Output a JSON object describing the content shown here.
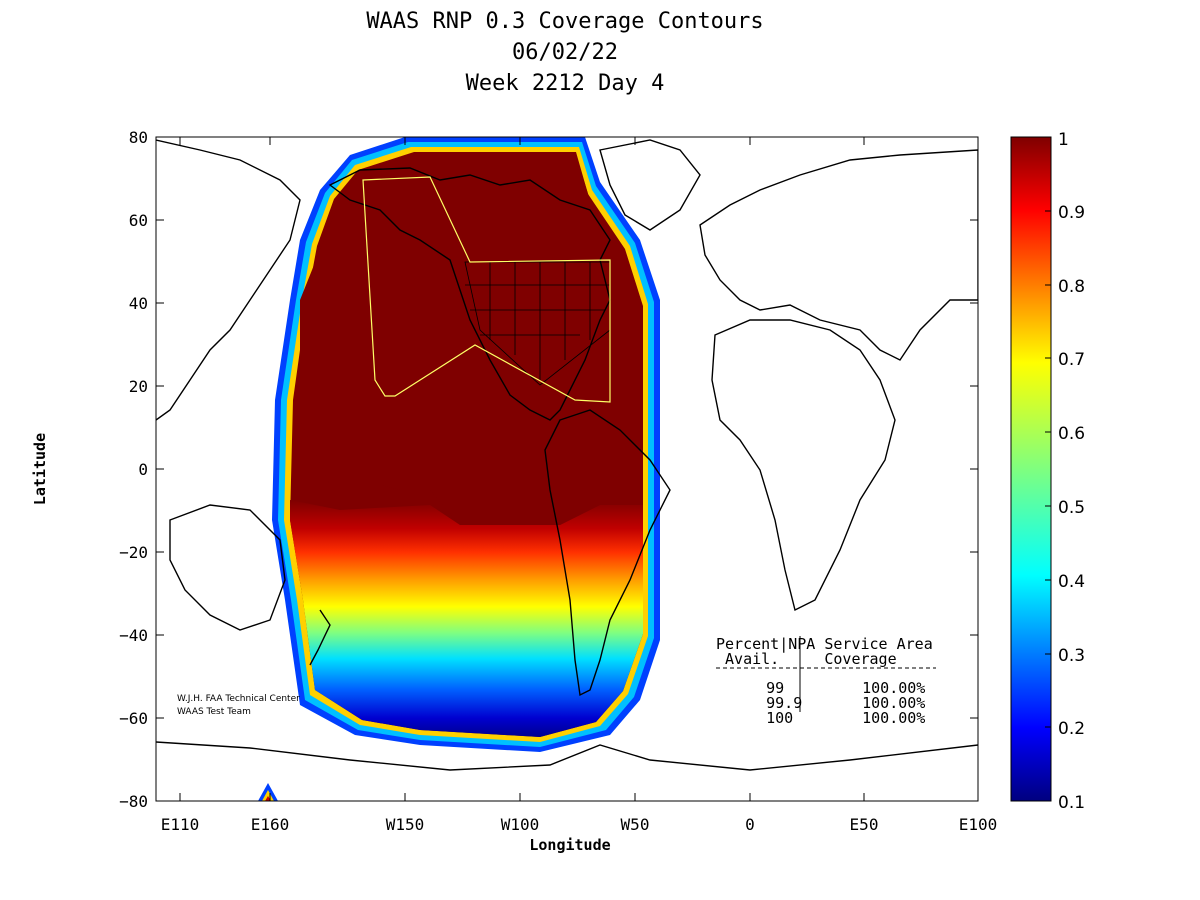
{
  "title": {
    "line1": "WAAS RNP 0.3 Coverage Contours",
    "line2": "06/02/22",
    "line3": "Week 2212 Day 4"
  },
  "axes": {
    "xlabel": "Longitude",
    "ylabel": "Latitude",
    "x_ticks": [
      "E110",
      "E160",
      "W150",
      "W100",
      "W50",
      "0",
      "E50",
      "E100"
    ],
    "y_ticks": [
      "80",
      "60",
      "40",
      "20",
      "0",
      "−20",
      "−40",
      "−60",
      "−80"
    ]
  },
  "colorbar": {
    "ticks": [
      "1",
      "0.9",
      "0.8",
      "0.7",
      "0.6",
      "0.5",
      "0.4",
      "0.3",
      "0.2",
      "0.1"
    ],
    "range": [
      0.1,
      1
    ],
    "colormap": "jet"
  },
  "credit": {
    "line1": "W.J.H. FAA Technical Center",
    "line2": "WAAS Test Team"
  },
  "legend": {
    "header1": "Percent|NPA Service Area",
    "header2": " Avail.     Coverage",
    "rows": [
      {
        "avail": "99",
        "coverage": "100.00%"
      },
      {
        "avail": "99.9",
        "coverage": "100.00%"
      },
      {
        "avail": "100",
        "coverage": "100.00%"
      }
    ]
  },
  "colors": {
    "dark_red": "#7f0000",
    "red": "#cc0000",
    "service_area_outline": "#ffff66"
  }
}
